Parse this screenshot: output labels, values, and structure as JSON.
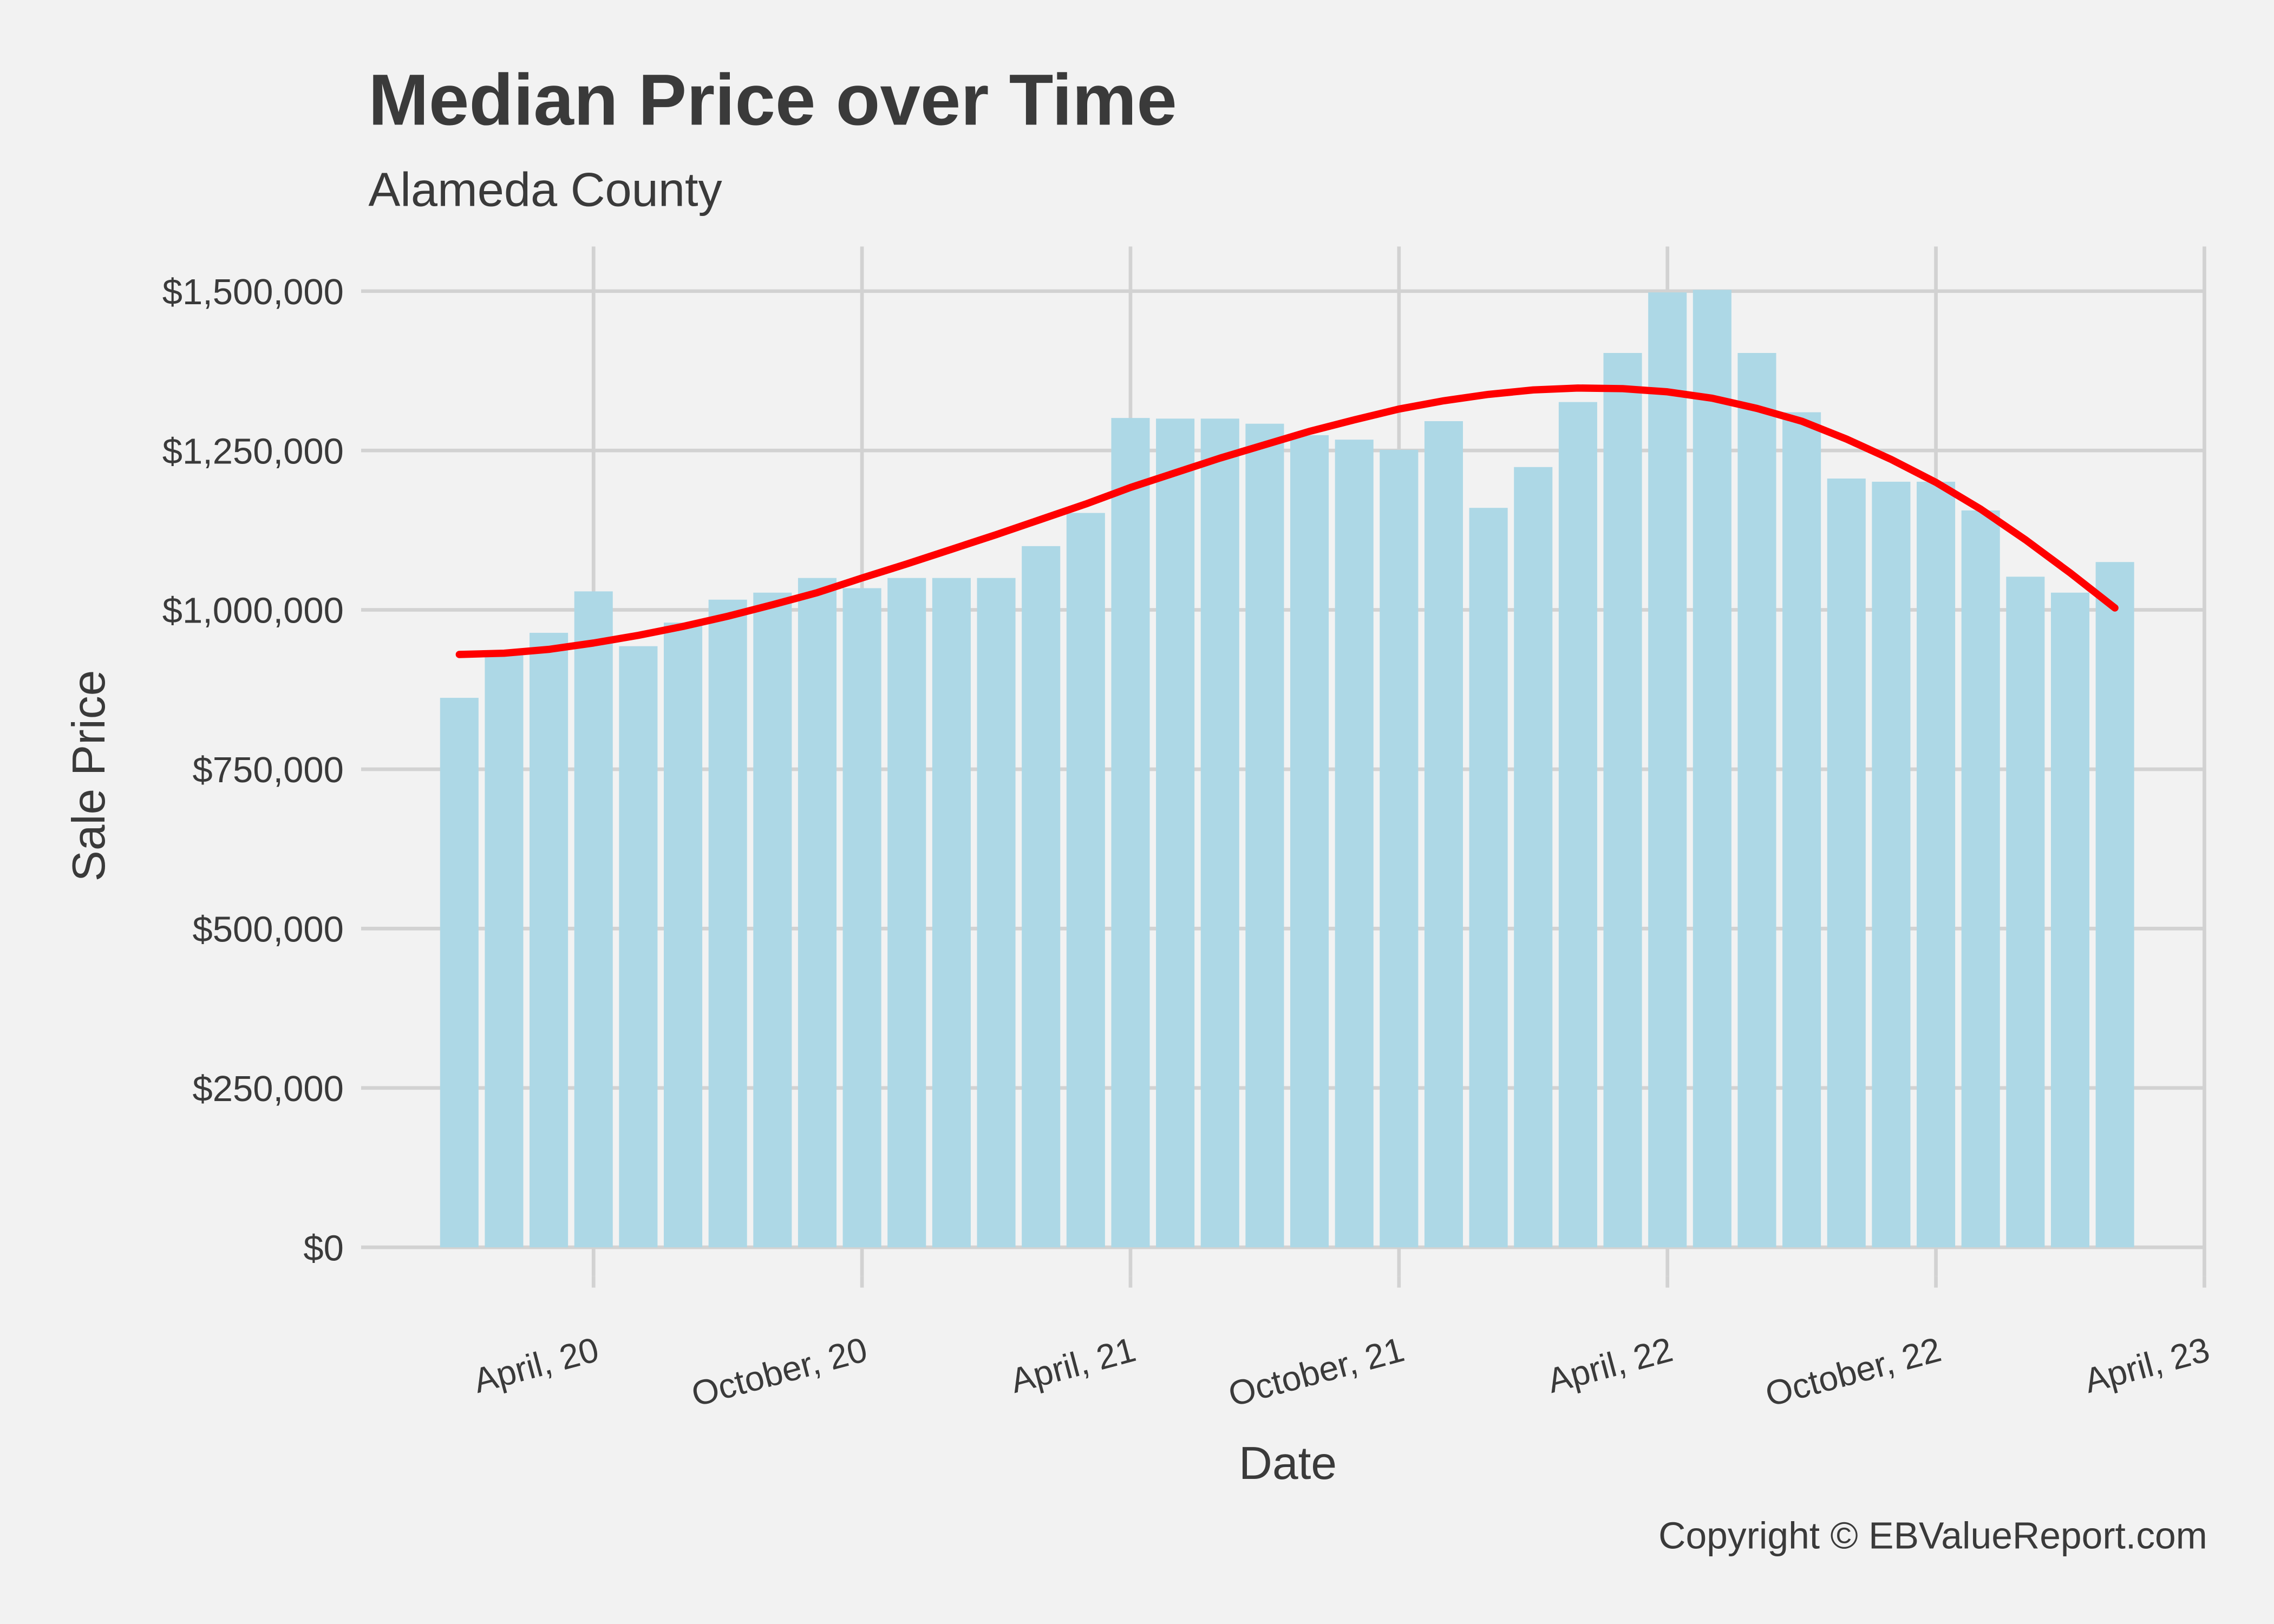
{
  "chart_data": {
    "type": "bar",
    "title": "Median Price over Time",
    "subtitle": "Alameda County",
    "xlabel": "Date",
    "ylabel": "Sale Price",
    "caption": "Copyright  © EBValueReport.com",
    "x": [
      "2020-01",
      "2020-02",
      "2020-03",
      "2020-04",
      "2020-05",
      "2020-06",
      "2020-07",
      "2020-08",
      "2020-09",
      "2020-10",
      "2020-11",
      "2020-12",
      "2021-01",
      "2021-02",
      "2021-03",
      "2021-04",
      "2021-05",
      "2021-06",
      "2021-07",
      "2021-08",
      "2021-09",
      "2021-10",
      "2021-11",
      "2021-12",
      "2022-01",
      "2022-02",
      "2022-03",
      "2022-04",
      "2022-05",
      "2022-06",
      "2022-07",
      "2022-08",
      "2022-09",
      "2022-10",
      "2022-11",
      "2022-12",
      "2023-01",
      "2023-02"
    ],
    "series": [
      {
        "color": "#add8e6",
        "values": [
          862000,
          930000,
          964000,
          1029000,
          943000,
          980000,
          1016000,
          1027000,
          1050000,
          1034000,
          1050000,
          1050000,
          1050000,
          1100000,
          1152000,
          1301000,
          1300000,
          1300000,
          1292000,
          1274000,
          1267000,
          1251000,
          1296000,
          1160000,
          1224000,
          1326000,
          1403000,
          1498000,
          1502000,
          1403000,
          1310000,
          1206000,
          1201000,
          1201000,
          1156000,
          1052000,
          1027000,
          1075000
        ]
      },
      {
        "type": "line",
        "color": "#ff0000",
        "values": [
          930000,
          932000,
          938000,
          948000,
          960000,
          974000,
          990000,
          1008000,
          1027000,
          1050000,
          1072000,
          1095000,
          1118000,
          1142000,
          1166000,
          1192000,
          1215000,
          1238000,
          1259000,
          1280000,
          1298000,
          1315000,
          1328000,
          1338000,
          1345000,
          1348000,
          1347000,
          1342000,
          1332000,
          1316000,
          1296000,
          1268000,
          1236000,
          1200000,
          1158000,
          1110000,
          1058000,
          1003000
        ]
      }
    ],
    "xlim": [
      "2019-11",
      "2023-04"
    ],
    "xticks": [
      {
        "value": "2020-04",
        "label": "April, 20"
      },
      {
        "value": "2020-10",
        "label": "October, 20"
      },
      {
        "value": "2021-04",
        "label": "April, 21"
      },
      {
        "value": "2021-10",
        "label": "October, 21"
      },
      {
        "value": "2022-04",
        "label": "April, 22"
      },
      {
        "value": "2022-10",
        "label": "October, 22"
      },
      {
        "value": "2023-04",
        "label": "April, 23"
      }
    ],
    "ylim": [
      -45000,
      1570000
    ],
    "yticks": [
      {
        "value": 0,
        "label": "$0"
      },
      {
        "value": 250000,
        "label": "$250,000"
      },
      {
        "value": 500000,
        "label": "$500,000"
      },
      {
        "value": 750000,
        "label": "$750,000"
      },
      {
        "value": 1000000,
        "label": "$1,000,000"
      },
      {
        "value": 1250000,
        "label": "$1,250,000"
      },
      {
        "value": 1500000,
        "label": "$1,500,000"
      }
    ],
    "grid": true
  }
}
